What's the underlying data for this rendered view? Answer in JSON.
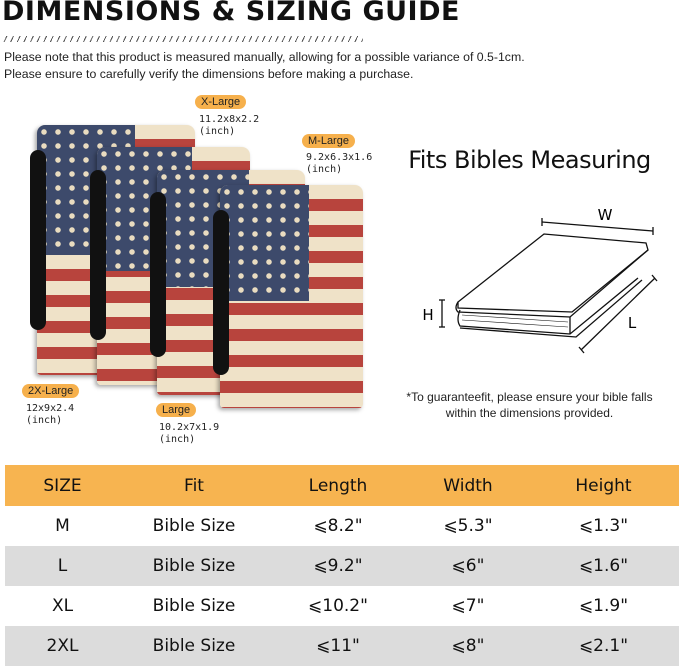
{
  "header": {
    "title": "DIMENSIONS & SIZING GUIDE",
    "note_line1": "Please note that this product is measured manually, allowing for a possible variance of 0.5-1cm.",
    "note_line2": "Please ensure to carefully verify the dimensions before making a purchase."
  },
  "product_sizes": [
    {
      "label": "X-Large",
      "dims": "11.2x8x2.2",
      "unit": "(inch)"
    },
    {
      "label": "M-Large",
      "dims": "9.2x6.3x1.6",
      "unit": "(inch)"
    },
    {
      "label": "2X-Large",
      "dims": "12x9x2.4",
      "unit": "(inch)"
    },
    {
      "label": "Large",
      "dims": "10.2x7x1.9",
      "unit": "(inch)"
    }
  ],
  "colors": {
    "accent": "#f7b450",
    "row_alt": "#dcdcdc",
    "flag_red": "#b8443d",
    "flag_blue": "#3d4a6b",
    "flag_cream": "#efe2c8"
  },
  "diagram": {
    "title": "Fits Bibles Measuring",
    "label_w": "W",
    "label_h": "H",
    "label_l": "L",
    "note_line1": "*To guaranteefit, please ensure your bible falls",
    "note_line2": "within the dimensions provided."
  },
  "table": {
    "headers": [
      "SIZE",
      "Fit",
      "Length",
      "Width",
      "Height"
    ],
    "rows": [
      [
        "M",
        "Bible Size",
        "⩽8.2\"",
        "⩽5.3\"",
        "⩽1.3\""
      ],
      [
        "L",
        "Bible Size",
        "⩽9.2\"",
        "⩽6\"",
        "⩽1.6\""
      ],
      [
        "XL",
        "Bible Size",
        "⩽10.2\"",
        "⩽7\"",
        "⩽1.9\""
      ],
      [
        "2XL",
        "Bible Size",
        "⩽11\"",
        "⩽8\"",
        "⩽2.1\""
      ]
    ]
  }
}
